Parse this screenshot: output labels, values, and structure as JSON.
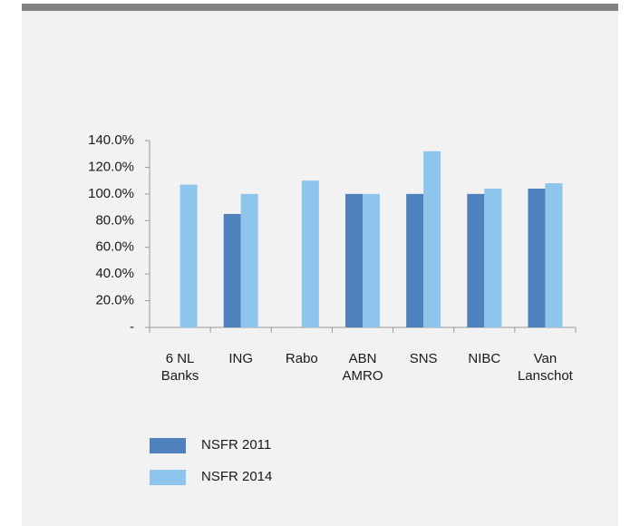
{
  "chart_data": {
    "type": "bar",
    "categories": [
      "6 NL\nBanks",
      "ING",
      "Rabo",
      "ABN\nAMRO",
      "SNS",
      "NIBC",
      "Van\nLanschot"
    ],
    "series": [
      {
        "name": "NSFR 2011",
        "color": "#4f81bd",
        "values": [
          null,
          85,
          null,
          100,
          100,
          100,
          104
        ]
      },
      {
        "name": "NSFR 2014",
        "color": "#8ec5ec",
        "values": [
          107,
          100,
          110,
          100,
          132,
          104,
          108
        ]
      }
    ],
    "ylim": [
      0,
      140
    ],
    "yticks": [
      {
        "value": 0,
        "label": "-"
      },
      {
        "value": 20,
        "label": "20.0%"
      },
      {
        "value": 40,
        "label": "40.0%"
      },
      {
        "value": 60,
        "label": "60.0%"
      },
      {
        "value": 80,
        "label": "80.0%"
      },
      {
        "value": 100,
        "label": "100.0%"
      },
      {
        "value": 120,
        "label": "120.0%"
      },
      {
        "value": 140,
        "label": "140.0%"
      }
    ]
  }
}
